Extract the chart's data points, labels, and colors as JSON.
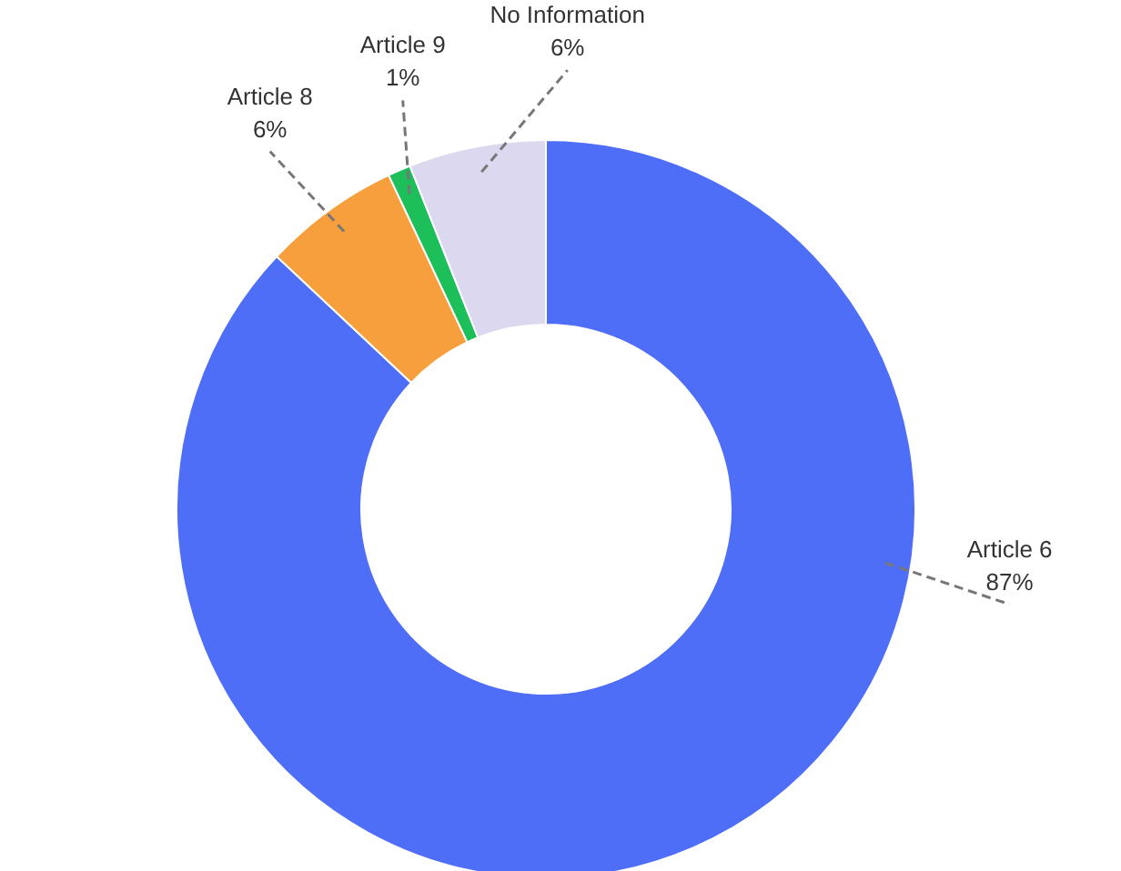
{
  "chart_data": {
    "type": "donut",
    "categories": [
      "Article 6",
      "Article 8",
      "Article 9",
      "No Information"
    ],
    "values": [
      87,
      6,
      1,
      6
    ],
    "colors": [
      "#4f6ef7",
      "#f79f3c",
      "#1dbf5a",
      "#dcd8f0"
    ],
    "value_labels": [
      "87%",
      "6%",
      "1%",
      "6%"
    ]
  }
}
